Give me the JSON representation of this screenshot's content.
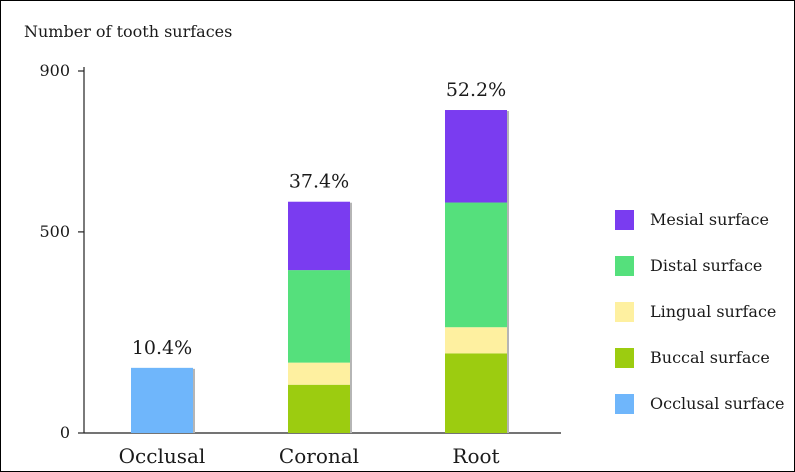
{
  "chart_data": {
    "type": "bar",
    "stacked": true,
    "title": "",
    "ylabel": "Number of tooth surfaces",
    "xlabel": "",
    "ylim": [
      0,
      900
    ],
    "yticks": [
      0,
      500,
      900
    ],
    "categories": [
      "Occlusal",
      "Coronal",
      "Root"
    ],
    "series": [
      {
        "name": "Occlusal surface",
        "color": "#6fb6fb",
        "values": [
          162,
          0,
          0
        ]
      },
      {
        "name": "Buccal surface",
        "color": "#9ccc10",
        "values": [
          0,
          120,
          198
        ]
      },
      {
        "name": "Lingual surface",
        "color": "#fef0a0",
        "values": [
          0,
          55,
          65
        ]
      },
      {
        "name": "Distal surface",
        "color": "#55e07c",
        "values": [
          0,
          230,
          310
        ]
      },
      {
        "name": "Mesial surface",
        "color": "#7a3cf0",
        "values": [
          0,
          170,
          230
        ]
      }
    ],
    "legend_order": [
      "Mesial surface",
      "Distal surface",
      "Lingual surface",
      "Buccal surface",
      "Occlusal surface"
    ],
    "legend_position": "right",
    "bar_labels": [
      "10.4%",
      "37.4%",
      "52.2%"
    ],
    "grid": false
  }
}
